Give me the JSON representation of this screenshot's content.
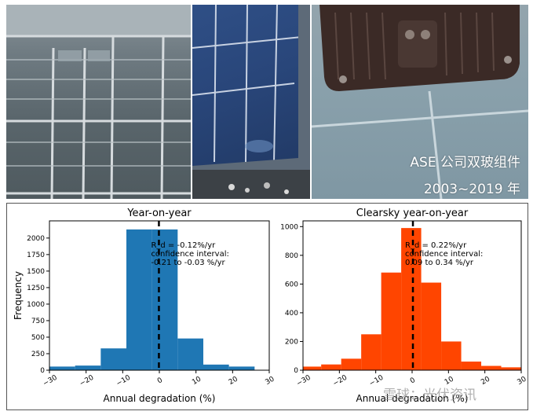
{
  "overlay": {
    "line1": "ASE 公司双玻组件",
    "line2": "2003~2019 年"
  },
  "watermark": "雪球：光伏资讯",
  "colors": {
    "left_bars": "#1f77b4",
    "right_bars": "#ff4500",
    "median_line": "#000000"
  },
  "chart_data": [
    {
      "type": "bar",
      "title": "Year-on-year",
      "xlabel": "Annual degradation (%)",
      "ylabel": "Frequency",
      "xlim": [
        -30,
        30
      ],
      "ylim": [
        0,
        2260
      ],
      "xticks": [
        -30,
        -20,
        -10,
        0,
        10,
        20,
        30
      ],
      "xtick_labels": [
        "−30",
        "−20",
        "−10",
        "0",
        "10",
        "20",
        "30"
      ],
      "yticks": [
        0,
        250,
        500,
        750,
        1000,
        1250,
        1500,
        1750,
        2000
      ],
      "ytick_labels": [
        "0",
        "250",
        "500",
        "750",
        "1000",
        "1250",
        "1500",
        "1750",
        "2000"
      ],
      "bins": [
        {
          "x0": -30,
          "x1": -23,
          "value": 55
        },
        {
          "x0": -23,
          "x1": -16,
          "value": 70
        },
        {
          "x0": -16,
          "x1": -9,
          "value": 330
        },
        {
          "x0": -9,
          "x1": -2,
          "value": 2130
        },
        {
          "x0": -2,
          "x1": 5,
          "value": 2130
        },
        {
          "x0": 5,
          "x1": 12,
          "value": 480
        },
        {
          "x0": 12,
          "x1": 19,
          "value": 85
        },
        {
          "x0": 19,
          "x1": 26,
          "value": 55
        }
      ],
      "median": -0.12,
      "annotation": [
        "R_d = -0.12%/yr",
        "confidence interval:",
        "-0.21 to -0.03 %/yr"
      ]
    },
    {
      "type": "bar",
      "title": "Clearsky year-on-year",
      "xlabel": "Annual degradation (%)",
      "ylabel": "",
      "xlim": [
        -30,
        30
      ],
      "ylim": [
        0,
        1040
      ],
      "xticks": [
        -30,
        -20,
        -10,
        0,
        10,
        20,
        30
      ],
      "xtick_labels": [
        "−30",
        "−20",
        "−10",
        "0",
        "10",
        "20",
        "30"
      ],
      "yticks": [
        0,
        200,
        400,
        600,
        800,
        1000
      ],
      "ytick_labels": [
        "0",
        "200",
        "400",
        "600",
        "800",
        "1000"
      ],
      "bins": [
        {
          "x0": -30,
          "x1": -25,
          "value": 25
        },
        {
          "x0": -25,
          "x1": -19.5,
          "value": 40
        },
        {
          "x0": -19.5,
          "x1": -14,
          "value": 80
        },
        {
          "x0": -14,
          "x1": -8.5,
          "value": 250
        },
        {
          "x0": -8.5,
          "x1": -3,
          "value": 680
        },
        {
          "x0": -3,
          "x1": 2.5,
          "value": 990
        },
        {
          "x0": 2.5,
          "x1": 8,
          "value": 610
        },
        {
          "x0": 8,
          "x1": 13.5,
          "value": 200
        },
        {
          "x0": 13.5,
          "x1": 19,
          "value": 60
        },
        {
          "x0": 19,
          "x1": 24.5,
          "value": 30
        },
        {
          "x0": 24.5,
          "x1": 30,
          "value": 20
        }
      ],
      "median": 0.22,
      "annotation": [
        "R_d = 0.22%/yr",
        "confidence interval:",
        "0.09 to 0.34 %/yr"
      ]
    }
  ]
}
